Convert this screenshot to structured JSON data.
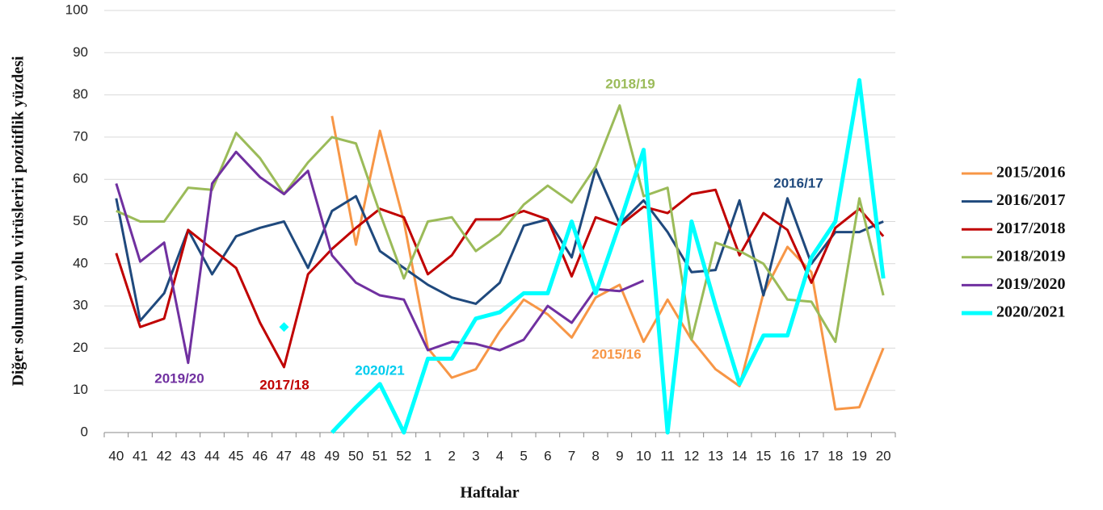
{
  "chart_data": {
    "type": "line",
    "x_label": "Haftalar",
    "y_label": "Diğer solunum yolu virüsleriri pozitiflik yüzdesi",
    "categories": [
      "40",
      "41",
      "42",
      "43",
      "44",
      "45",
      "46",
      "47",
      "48",
      "49",
      "50",
      "51",
      "52",
      "1",
      "2",
      "3",
      "4",
      "5",
      "6",
      "7",
      "8",
      "9",
      "10",
      "11",
      "12",
      "13",
      "14",
      "15",
      "16",
      "17",
      "18",
      "19",
      "20"
    ],
    "ylim": [
      0,
      100
    ],
    "yticks": [
      0,
      10,
      20,
      30,
      40,
      50,
      60,
      70,
      80,
      90,
      100
    ],
    "grid": true,
    "series": [
      {
        "name": "2015/2016",
        "color": "#f79646",
        "values": [
          null,
          null,
          null,
          null,
          null,
          null,
          null,
          null,
          null,
          75,
          44.5,
          71.5,
          50,
          20,
          13,
          15,
          24,
          31.5,
          28,
          22.5,
          32,
          35,
          21.5,
          31.5,
          22,
          15,
          11,
          33,
          44,
          38,
          5.5,
          6,
          20
        ]
      },
      {
        "name": "2016/2017",
        "color": "#1f497d",
        "values": [
          55.5,
          26.5,
          33,
          48,
          37.5,
          46.5,
          48.5,
          50,
          39,
          52.5,
          56,
          43,
          39,
          35,
          32,
          30.5,
          35.5,
          49,
          50.5,
          41.5,
          62.5,
          49.5,
          55,
          47.5,
          38,
          38.5,
          55,
          32.5,
          55.5,
          40,
          47.5,
          47.5,
          50
        ]
      },
      {
        "name": "2017/2018",
        "color": "#c00000",
        "values": [
          42.5,
          25,
          27,
          48,
          43.5,
          39,
          26,
          15.5,
          37.5,
          43.5,
          48.5,
          53,
          51,
          37.5,
          42,
          50.5,
          50.5,
          52.5,
          50.5,
          37,
          51,
          49,
          53.5,
          52,
          56.5,
          57.5,
          42,
          52,
          48,
          35.5,
          48.5,
          53,
          46.5
        ]
      },
      {
        "name": "2018/2019",
        "color": "#9bbb59",
        "values": [
          52.5,
          50,
          50,
          58,
          57.5,
          71,
          65,
          56.5,
          64,
          70,
          68.5,
          52,
          36.5,
          50,
          51,
          43,
          47,
          54,
          58.5,
          54.5,
          63,
          77.5,
          56,
          58,
          22,
          45,
          43,
          40,
          31.5,
          31,
          21.5,
          55.5,
          32.5
        ]
      },
      {
        "name": "2019/2020",
        "color": "#7030a0",
        "values": [
          59,
          40.5,
          45,
          16.5,
          59,
          66.5,
          60.5,
          56.5,
          62,
          42,
          35.5,
          32.5,
          31.5,
          19.5,
          21.5,
          21,
          19.5,
          22,
          30,
          26,
          34,
          33.5,
          36,
          null,
          null,
          null,
          null,
          null,
          null,
          null,
          null,
          null,
          null
        ]
      },
      {
        "name": "2020/2021",
        "color": "#00ffff",
        "values": [
          null,
          null,
          null,
          null,
          null,
          null,
          null,
          25,
          null,
          0,
          6,
          11.5,
          0,
          17.5,
          17.5,
          27,
          28.5,
          33,
          33,
          50,
          33,
          49.5,
          67,
          0,
          50,
          30,
          11.5,
          23,
          23,
          41.5,
          50,
          83.5,
          36.5
        ]
      }
    ],
    "annotations": [
      {
        "text": "2018/19",
        "color": "#9bbb59"
      },
      {
        "text": "2016/17",
        "color": "#1f497d"
      },
      {
        "text": "2019/20",
        "color": "#7030a0"
      },
      {
        "text": "2017/18",
        "color": "#c00000"
      },
      {
        "text": "2020/21",
        "color": "#00ccee"
      },
      {
        "text": "2015/16",
        "color": "#f79646"
      }
    ]
  }
}
